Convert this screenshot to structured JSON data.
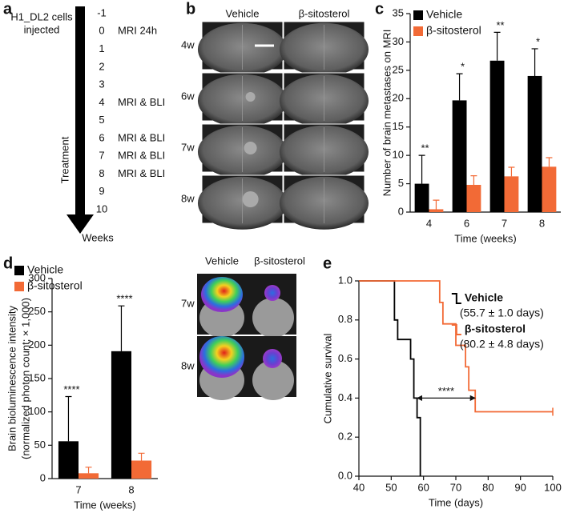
{
  "timeline": {
    "panel_label": "a",
    "header": [
      "H1_DL2 cells",
      "injected"
    ],
    "axis_label": "Treatment",
    "footer": "Weeks",
    "rows": [
      {
        "week": "-1"
      },
      {
        "week": "0",
        "event": "MRI 24h"
      },
      {
        "week": "1"
      },
      {
        "week": "2"
      },
      {
        "week": "3"
      },
      {
        "week": "4",
        "event": "MRI & BLI"
      },
      {
        "week": "5"
      },
      {
        "week": "6",
        "event": "MRI & BLI"
      },
      {
        "week": "7",
        "event": "MRI & BLI"
      },
      {
        "week": "8",
        "event": "MRI & BLI"
      },
      {
        "week": "9"
      },
      {
        "week": "10"
      }
    ]
  },
  "mri": {
    "panel_label": "b",
    "columns": [
      "Vehicle",
      "β-sitosterol"
    ],
    "rows": [
      "4w",
      "6w",
      "7w",
      "8w"
    ]
  },
  "bli": {
    "columns": [
      "Vehicle",
      "β-sitosterol"
    ],
    "rows": [
      "7w",
      "8w"
    ]
  },
  "chart_data": [
    {
      "type": "bar",
      "panel_label": "c",
      "ylabel": "Number of brain metastases on MRI",
      "xlabel": "Time (weeks)",
      "categories": [
        "4",
        "6",
        "7",
        "8"
      ],
      "series": [
        {
          "name": "Vehicle",
          "color": "#000000",
          "values": [
            5,
            19.7,
            26.7,
            24
          ],
          "errors": [
            5,
            4.7,
            5,
            4.8
          ]
        },
        {
          "name": "β-sitosterol",
          "color": "#f26a36",
          "values": [
            0.5,
            4.8,
            6.3,
            8
          ],
          "errors": [
            1.6,
            1.6,
            1.6,
            1.6
          ]
        }
      ],
      "significance": [
        "**",
        "*",
        "**",
        "*"
      ],
      "ylim": [
        0,
        35
      ],
      "yticks": [
        0,
        5,
        10,
        15,
        20,
        25,
        30,
        35
      ],
      "legend": "top-left"
    },
    {
      "type": "bar",
      "panel_label": "d",
      "ylabel": [
        "Brain bioluminescence intensity",
        "(normalized photon count; × 1,000)"
      ],
      "xlabel": "Time (weeks)",
      "categories": [
        "7",
        "8"
      ],
      "series": [
        {
          "name": "Vehicle",
          "color": "#000000",
          "values": [
            56,
            191
          ],
          "errors": [
            67,
            68
          ]
        },
        {
          "name": "β-sitosterol",
          "color": "#f26a36",
          "values": [
            8,
            27
          ],
          "errors": [
            9,
            11
          ]
        }
      ],
      "significance": [
        "****",
        "****"
      ],
      "ylim": [
        0,
        300
      ],
      "yticks": [
        0,
        50,
        100,
        150,
        200,
        250,
        300
      ],
      "legend": "top-left"
    },
    {
      "type": "step",
      "panel_label": "e",
      "ylabel": "Cumulative survival",
      "xlabel": "Time (days)",
      "series": [
        {
          "name": "Vehicle",
          "note": "(55.7 ± 1.0 days)",
          "color": "#000000",
          "x": [
            40,
            51,
            52,
            56,
            57,
            58,
            59
          ],
          "values": [
            1.0,
            0.8,
            0.7,
            0.6,
            0.4,
            0.3,
            0.0
          ]
        },
        {
          "name": "β-sitosterol",
          "note": "(80.2 ± 4.8 days)",
          "color": "#f26a36",
          "x": [
            40,
            65,
            66,
            70,
            73,
            74,
            76,
            100
          ],
          "values": [
            1.0,
            0.89,
            0.78,
            0.67,
            0.56,
            0.44,
            0.33,
            0.33
          ],
          "censored_end": true
        }
      ],
      "annotation": {
        "text": "****",
        "x": [
          58,
          76
        ],
        "y": 0.4
      },
      "xlim": [
        40,
        100
      ],
      "xticks": [
        40,
        50,
        60,
        70,
        80,
        90,
        100
      ],
      "ylim": [
        0,
        1
      ],
      "yticks": [
        {
          "value": 0,
          "label": "0.0"
        },
        {
          "value": 0.2,
          "label": "0.2"
        },
        {
          "value": 0.4,
          "label": "0.4"
        },
        {
          "value": 0.6,
          "label": "0.6"
        },
        {
          "value": 0.8,
          "label": "0.8"
        },
        {
          "value": 1,
          "label": "1.0"
        }
      ],
      "legend": "right"
    }
  ]
}
